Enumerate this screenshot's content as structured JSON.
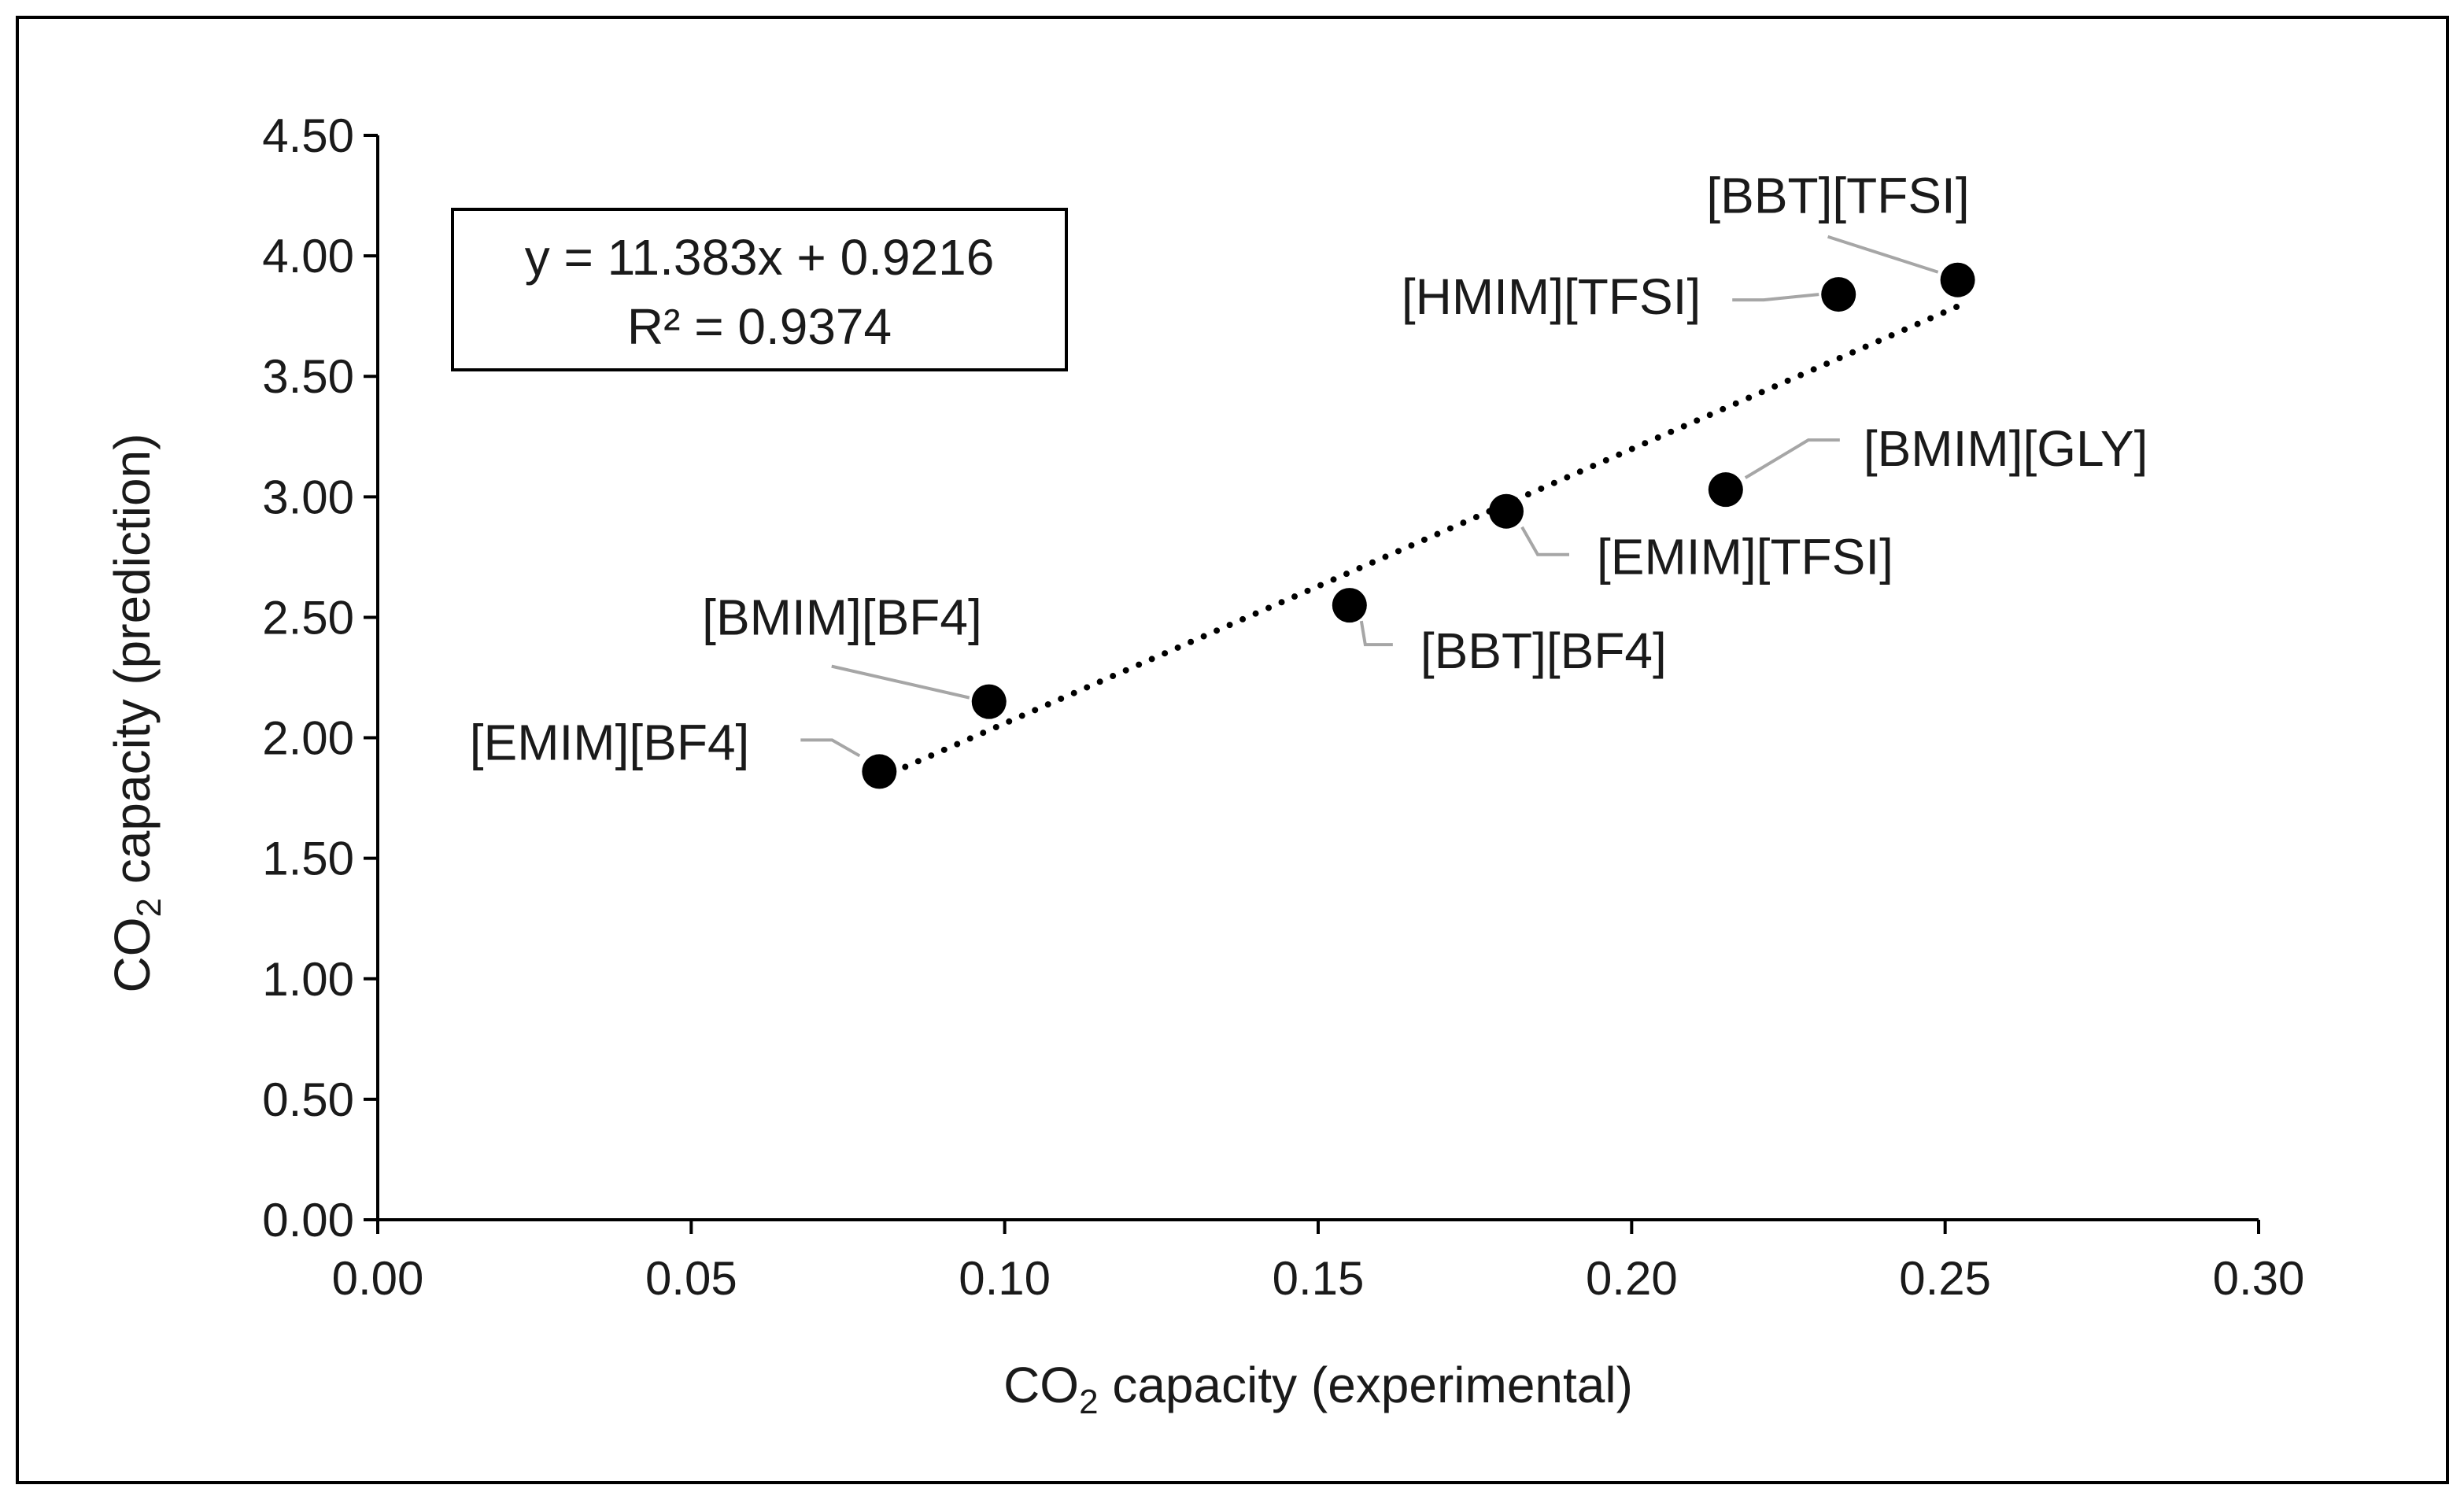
{
  "chart_data": {
    "type": "scatter",
    "xlabel": {
      "prefix": "CO",
      "subscript": "2",
      "suffix": " capacity (experimental)"
    },
    "ylabel": {
      "prefix": "CO",
      "subscript": "2",
      "suffix": " capacity (prediction)"
    },
    "xlim": [
      0,
      0.3
    ],
    "ylim": [
      0,
      4.5
    ],
    "x_ticks": [
      0,
      0.05,
      0.1,
      0.15,
      0.2,
      0.25,
      0.3
    ],
    "x_tick_labels": [
      "0.00",
      "0.05",
      "0.10",
      "0.15",
      "0.20",
      "0.25",
      "0.30"
    ],
    "y_ticks": [
      0,
      0.5,
      1,
      1.5,
      2,
      2.5,
      3,
      3.5,
      4,
      4.5
    ],
    "y_tick_labels": [
      "0.00",
      "0.50",
      "1.00",
      "1.50",
      "2.00",
      "2.50",
      "3.00",
      "3.50",
      "4.00",
      "4.50"
    ],
    "grid": false,
    "marker_color": "#000000",
    "leader_line_color": "#a6a6a6",
    "trendline": {
      "style": "dotted",
      "slope": 11.383,
      "intercept": 0.9216,
      "x_range": [
        0.08,
        0.252
      ],
      "equation_label": "y = 11.383x + 0.9216",
      "r2_label": "R² = 0.9374"
    },
    "points": [
      {
        "label": "[EMIM][BF4]",
        "x": 0.08,
        "y": 1.86
      },
      {
        "label": "[BMIM][BF4]",
        "x": 0.0975,
        "y": 2.15
      },
      {
        "label": "[BBT][BF4]",
        "x": 0.155,
        "y": 2.55
      },
      {
        "label": "[EMIM][TFSI]",
        "x": 0.18,
        "y": 2.94
      },
      {
        "label": "[BMIM][GLY]",
        "x": 0.215,
        "y": 3.03
      },
      {
        "label": "[HMIM][TFSI]",
        "x": 0.233,
        "y": 3.84
      },
      {
        "label": "[BBT][TFSI]",
        "x": 0.252,
        "y": 3.9
      }
    ]
  }
}
